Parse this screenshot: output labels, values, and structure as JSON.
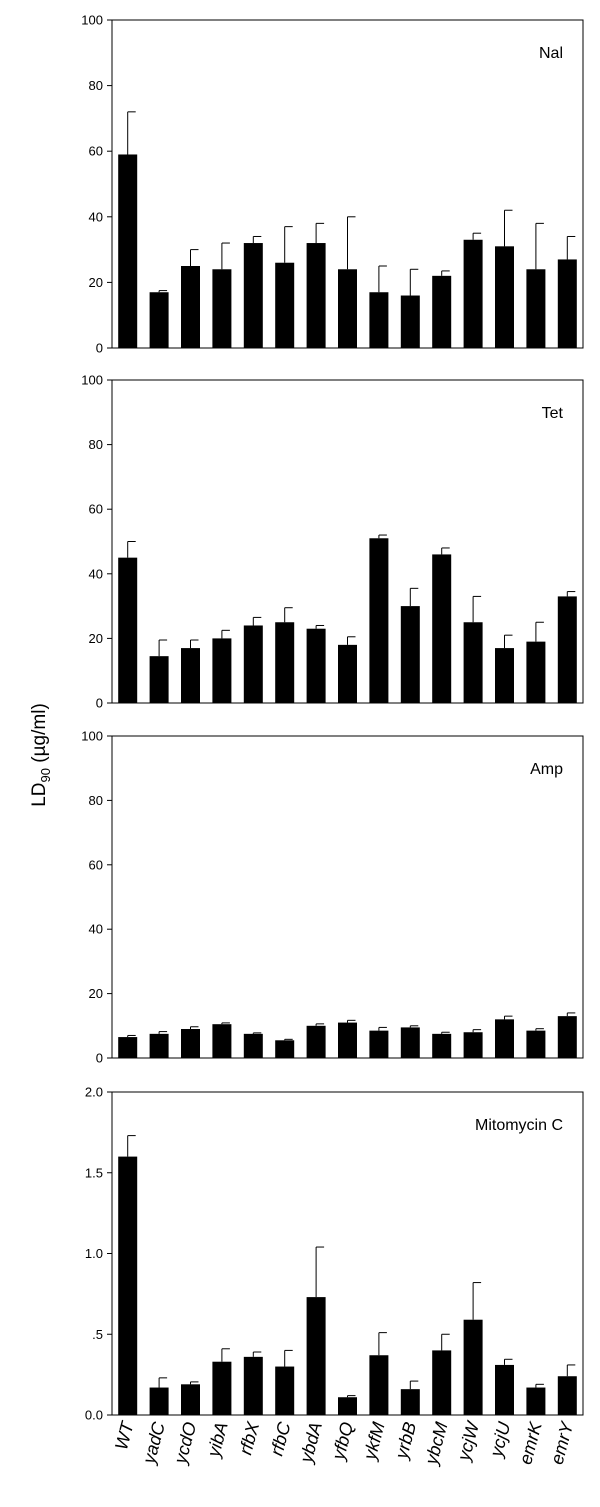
{
  "figure": {
    "ylabel_main": "LD",
    "ylabel_sub": "90",
    "ylabel_unit": " (µg/ml)",
    "bar_color": "#000000"
  },
  "chart_data": [
    {
      "type": "bar",
      "title": "Nal",
      "categories": [
        "WT",
        "yadC",
        "ycdO",
        "yibA",
        "rfbX",
        "rfbC",
        "ybdA",
        "yfbQ",
        "ykfM",
        "yrbB",
        "ybcM",
        "ycjW",
        "ycjU",
        "emrK",
        "emrY"
      ],
      "values": [
        59,
        17,
        25,
        24,
        32,
        26,
        32,
        24,
        17,
        16,
        22,
        33,
        31,
        24,
        27
      ],
      "error": [
        13,
        0.5,
        5,
        8,
        2,
        11,
        6,
        16,
        8,
        8,
        1.5,
        2,
        11,
        14,
        7
      ],
      "ylim": [
        0,
        100
      ],
      "yticks": [
        0,
        20,
        40,
        60,
        80,
        100
      ],
      "ytick_labels": [
        "0",
        "20",
        "40",
        "60",
        "80",
        "100"
      ],
      "grid": false
    },
    {
      "type": "bar",
      "title": "Tet",
      "categories": [
        "WT",
        "yadC",
        "ycdO",
        "yibA",
        "rfbX",
        "rfbC",
        "ybdA",
        "yfbQ",
        "ykfM",
        "yrbB",
        "ybcM",
        "ycjW",
        "ycjU",
        "emrK",
        "emrY"
      ],
      "values": [
        45,
        14.5,
        17,
        20,
        24,
        25,
        23,
        18,
        51,
        30,
        46,
        25,
        17,
        19,
        33
      ],
      "error": [
        5,
        5,
        2.5,
        2.5,
        2.5,
        4.5,
        1,
        2.5,
        1,
        5.5,
        2,
        8,
        4,
        6,
        1.5
      ],
      "ylim": [
        0,
        100
      ],
      "yticks": [
        0,
        20,
        40,
        60,
        80,
        100
      ],
      "ytick_labels": [
        "0",
        "20",
        "40",
        "60",
        "80",
        "100"
      ],
      "grid": false
    },
    {
      "type": "bar",
      "title": "Amp",
      "categories": [
        "WT",
        "yadC",
        "ycdO",
        "yibA",
        "rfbX",
        "rfbC",
        "ybdA",
        "yfbQ",
        "ykfM",
        "yrbB",
        "ybcM",
        "ycjW",
        "ycjU",
        "emrK",
        "emrY"
      ],
      "values": [
        6.5,
        7.5,
        9,
        10.5,
        7.5,
        5.5,
        10,
        11,
        8.5,
        9.5,
        7.5,
        8,
        12,
        8.5,
        13
      ],
      "error": [
        0.5,
        0.7,
        0.7,
        0.4,
        0.3,
        0.3,
        0.6,
        0.7,
        1,
        0.5,
        0.5,
        0.8,
        1,
        0.6,
        1
      ],
      "ylim": [
        0,
        100
      ],
      "yticks": [
        0,
        20,
        40,
        60,
        80,
        100
      ],
      "ytick_labels": [
        "0",
        "20",
        "40",
        "60",
        "80",
        "100"
      ],
      "grid": false
    },
    {
      "type": "bar",
      "title": "Mitomycin C",
      "categories": [
        "WT",
        "yadC",
        "ycdO",
        "yibA",
        "rfbX",
        "rfbC",
        "ybdA",
        "yfbQ",
        "ykfM",
        "yrbB",
        "ybcM",
        "ycjW",
        "ycjU",
        "emrK",
        "emrY"
      ],
      "values": [
        1.6,
        0.17,
        0.19,
        0.33,
        0.36,
        0.3,
        0.73,
        0.11,
        0.37,
        0.16,
        0.4,
        0.59,
        0.31,
        0.17,
        0.24
      ],
      "error": [
        0.13,
        0.06,
        0.015,
        0.08,
        0.03,
        0.1,
        0.31,
        0.01,
        0.14,
        0.05,
        0.1,
        0.23,
        0.035,
        0.02,
        0.07
      ],
      "ylim": [
        0,
        2.0
      ],
      "yticks": [
        0,
        0.5,
        1.0,
        1.5,
        2.0
      ],
      "ytick_labels": [
        "0.0",
        ".5",
        "1.0",
        "1.5",
        "2.0"
      ],
      "grid": false
    }
  ]
}
